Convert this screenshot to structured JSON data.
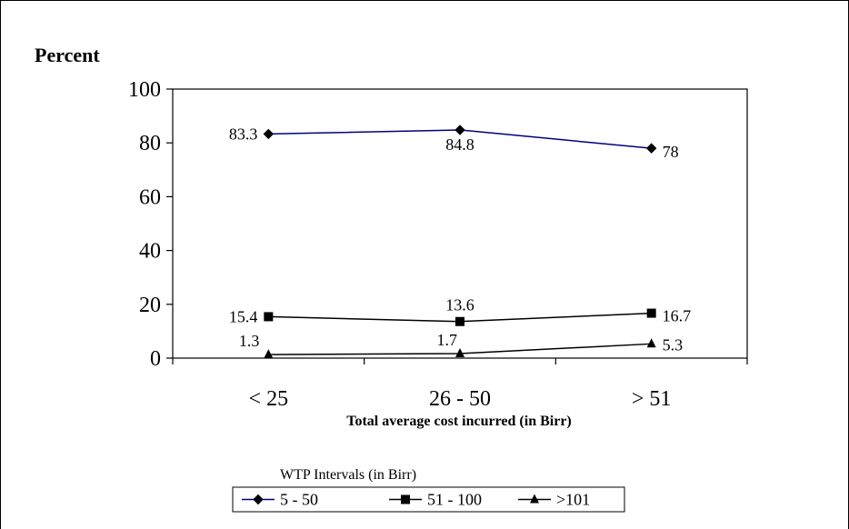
{
  "chart_data": {
    "type": "line",
    "ylabel": "Percent",
    "xlabel": "Total average cost incurred (in Birr)",
    "categories": [
      "< 25",
      "26 - 50",
      "> 51"
    ],
    "ylim": [
      0,
      100
    ],
    "yticks": [
      "0",
      "20",
      "40",
      "60",
      "80",
      "100"
    ],
    "grid": false,
    "legend_title": "WTP Intervals (in Birr)",
    "legend_position": "bottom",
    "series": [
      {
        "name": "5 - 50",
        "values": [
          83.3,
          84.8,
          78
        ],
        "labels": [
          "83.3",
          "84.8",
          "78"
        ],
        "color": "#000080",
        "marker": "diamond"
      },
      {
        "name": "51 - 100",
        "values": [
          15.4,
          13.6,
          16.7
        ],
        "labels": [
          "15.4",
          "13.6",
          "16.7"
        ],
        "color": "#000000",
        "marker": "square"
      },
      {
        "name": ">101",
        "values": [
          1.3,
          1.7,
          5.3
        ],
        "labels": [
          "1.3",
          "1.7",
          "5.3"
        ],
        "color": "#000000",
        "marker": "triangle"
      }
    ]
  }
}
